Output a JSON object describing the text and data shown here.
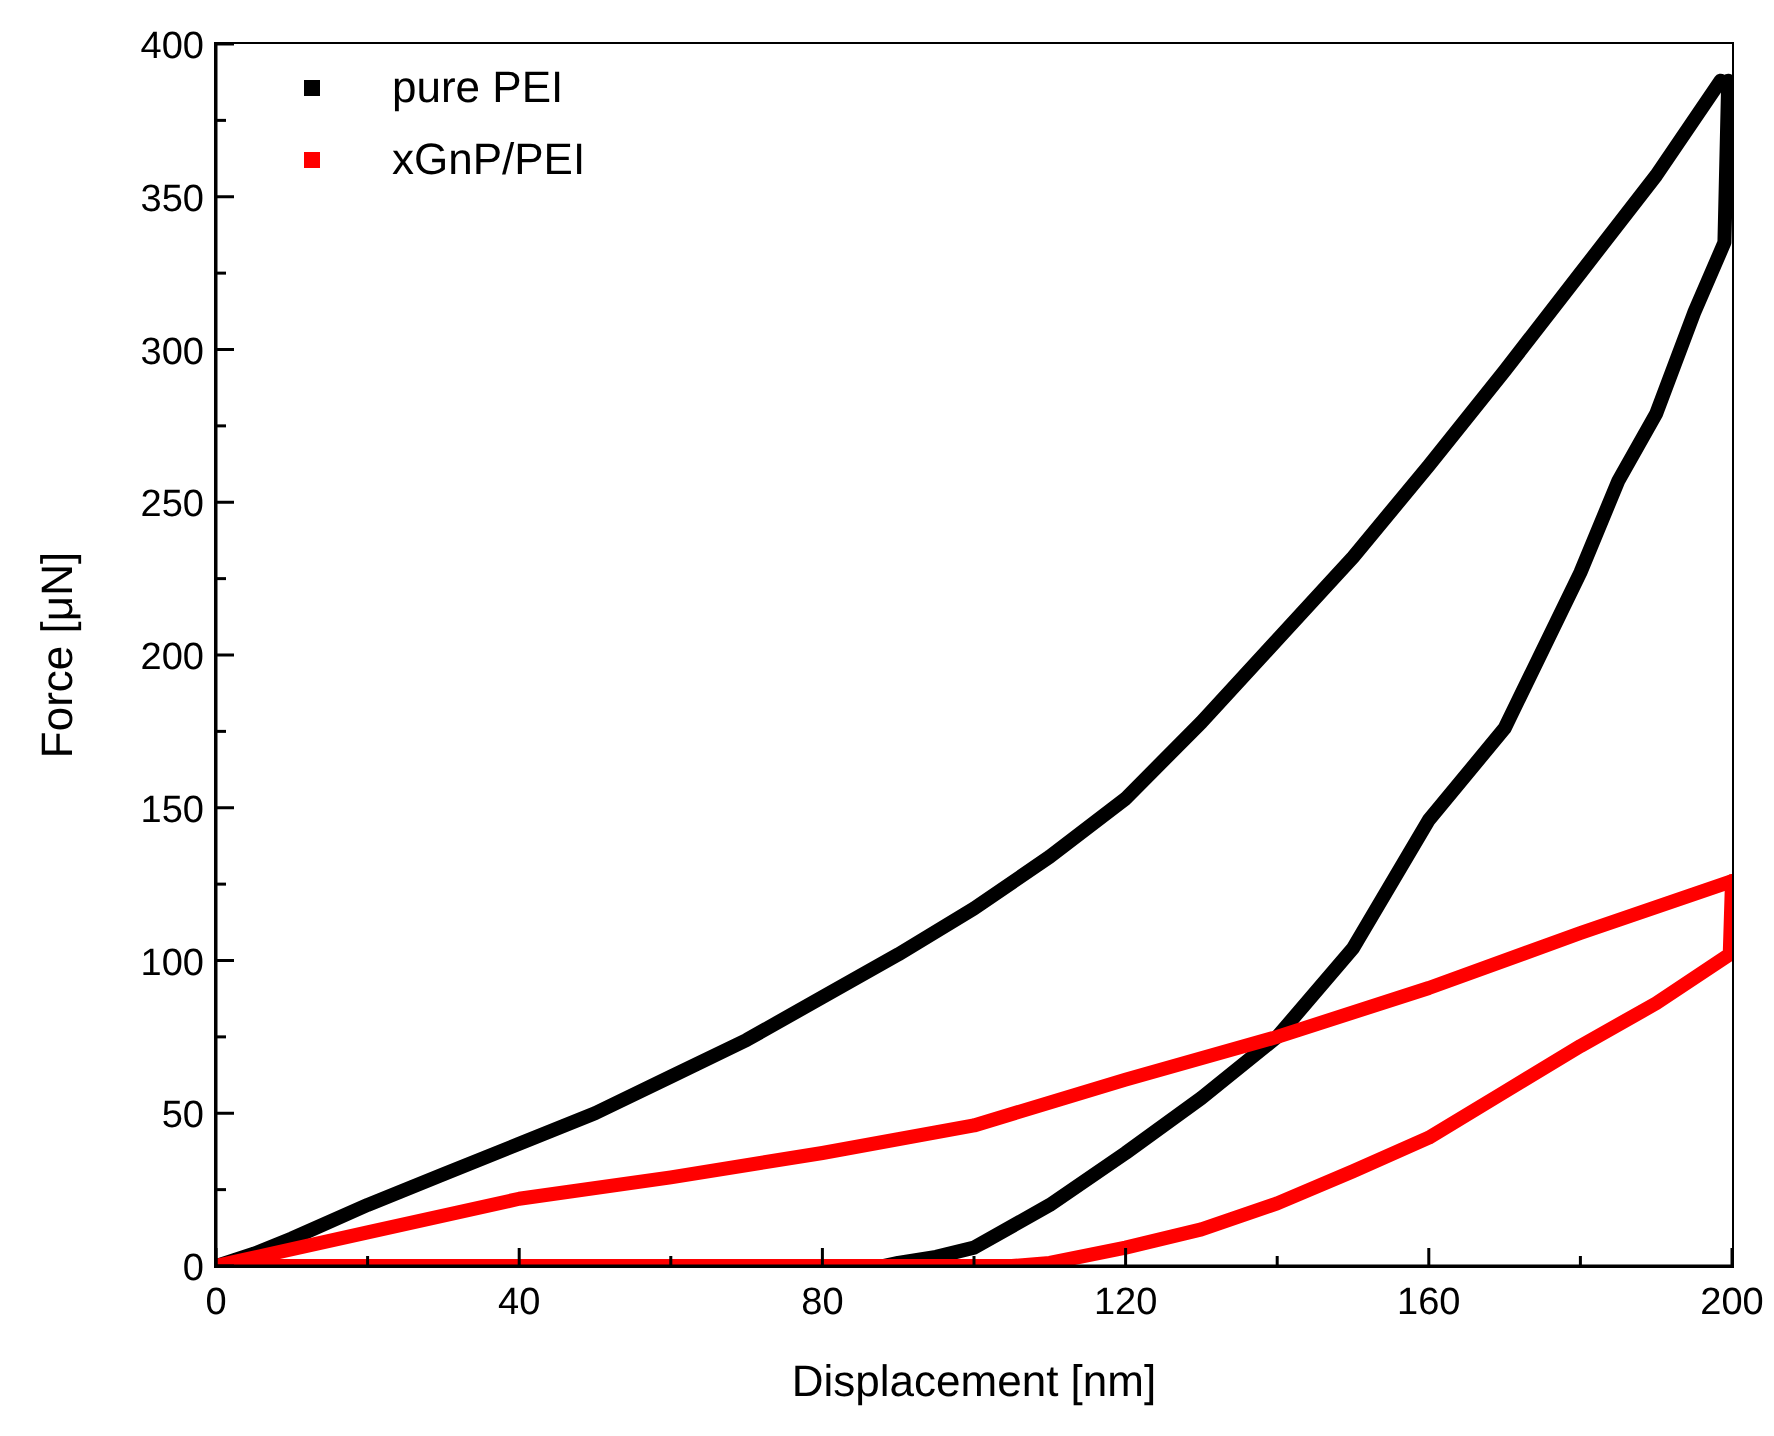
{
  "chart_data": {
    "type": "line",
    "xlabel": "Displacement [nm]",
    "ylabel": "Force [μN]",
    "xlim": [
      0,
      200
    ],
    "ylim": [
      0,
      400
    ],
    "xticks": [
      0,
      {
        "value": 20,
        "label": null
      },
      40,
      {
        "value": 60,
        "label": null
      },
      80,
      {
        "value": 100,
        "label": null
      },
      120,
      {
        "value": 140,
        "label": null
      },
      160,
      {
        "value": 180,
        "label": null
      },
      200
    ],
    "yticks": [
      0,
      {
        "value": 25,
        "label": null
      },
      50,
      {
        "value": 75,
        "label": null
      },
      100,
      {
        "value": 125,
        "label": null
      },
      150,
      {
        "value": 175,
        "label": null
      },
      200,
      {
        "value": 225,
        "label": null
      },
      250,
      {
        "value": 275,
        "label": null
      },
      300,
      {
        "value": 325,
        "label": null
      },
      350,
      {
        "value": 375,
        "label": null
      },
      400
    ],
    "legend": "top left",
    "series": [
      {
        "name": "pure PEI",
        "color": "#000000",
        "x": [
          0,
          5,
          10,
          20,
          30,
          40,
          50,
          60,
          70,
          80,
          90,
          100,
          110,
          120,
          130,
          140,
          150,
          160,
          170,
          180,
          190,
          198.5
        ],
        "values": [
          0,
          4,
          9,
          20,
          30,
          40,
          50,
          62,
          74,
          88,
          102,
          117,
          134,
          153,
          178,
          205,
          232,
          262,
          293,
          325,
          357,
          388
        ]
      },
      {
        "color": "#000000",
        "x": [
          0,
          30,
          60,
          88,
          90,
          95,
          100,
          110,
          120,
          130,
          140,
          150,
          160,
          170,
          180,
          185,
          190,
          195,
          199,
          199.5
        ],
        "values": [
          0,
          0,
          0,
          0,
          1,
          3,
          6,
          20,
          37,
          55,
          75,
          104,
          146,
          176,
          227,
          257,
          279,
          312,
          335,
          388
        ]
      },
      {
        "name": "xGnP/PEI",
        "color": "#ff0000",
        "x": [
          0,
          20,
          40,
          60,
          80,
          100,
          120,
          140,
          160,
          180,
          200
        ],
        "values": [
          0,
          11,
          22,
          29,
          37,
          46,
          61,
          75,
          91,
          109,
          126
        ]
      },
      {
        "color": "#ff0000",
        "x": [
          0,
          40,
          80,
          105,
          110,
          120,
          130,
          140,
          150,
          160,
          170,
          180,
          190,
          199.7,
          200
        ],
        "values": [
          0,
          0,
          0,
          0,
          1,
          6,
          12,
          20.5,
          31,
          42,
          57,
          72,
          86,
          102,
          126
        ]
      }
    ]
  }
}
